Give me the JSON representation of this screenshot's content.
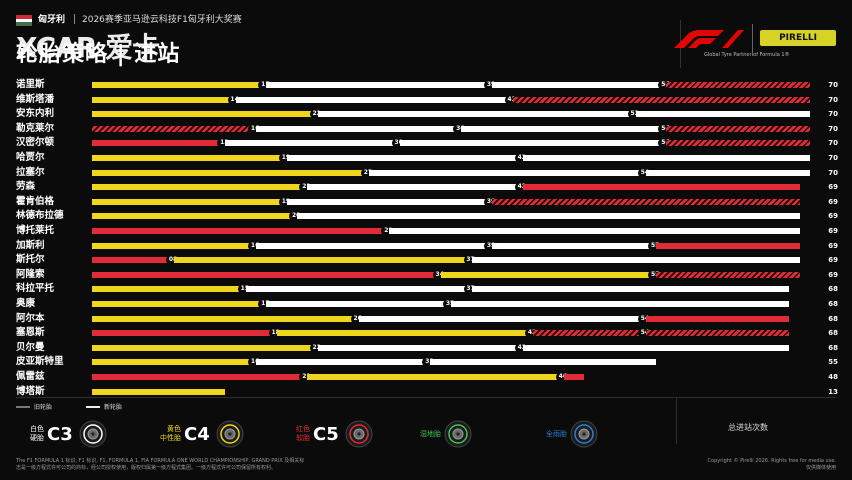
{
  "header": {
    "country": "匈牙利",
    "event": "2026赛季亚马逊云科技F1匈牙利大奖赛",
    "title": "轮胎策略 | 进站",
    "partner": "Global Tyre Partner of Formula 1®",
    "pirelli": "PIRELLI",
    "watermark": "XCAR 爱卡"
  },
  "colors": {
    "c3": "#ffffff",
    "c4": "#f0d51d",
    "c5": "#e12c38",
    "bg": "#0b0b0b"
  },
  "legend": {
    "used": "旧轮胎",
    "new": "新轮胎"
  },
  "tyres": [
    {
      "code": "C3",
      "cn": [
        "白色",
        "硬胎"
      ],
      "color": "#ffffff",
      "icon": "hard-tyre-icon"
    },
    {
      "code": "C4",
      "cn": [
        "黄色",
        "中性胎"
      ],
      "color": "#f0d51d",
      "icon": "medium-tyre-icon"
    },
    {
      "code": "C5",
      "cn": [
        "红色",
        "软胎"
      ],
      "color": "#e12c38",
      "icon": "soft-tyre-icon"
    },
    {
      "code": "",
      "cn": [
        "湿地胎"
      ],
      "color": "#3cc35a",
      "icon": "intermediate-tyre-icon"
    },
    {
      "code": "",
      "cn": [
        "全雨胎"
      ],
      "color": "#2a7fd4",
      "icon": "wet-tyre-icon"
    }
  ],
  "stops_label": "总进站次数",
  "footer": {
    "left1": "The F1 FORMULA 1 标识, F1 标识, F1, FORMULA 1, FIA FORMULA ONE WORLD CHAMPIONSHIP, GRAND PRIX 及相关标",
    "left2": "志是一级方程式许可公司的商标，经公司授权使用，版权归属第一级方程式集团。一级方程式许可公司保留所有权利。",
    "right1": "Copyright © Pirelli 2026. Rights free for media use.",
    "right2": "仅供媒体使用"
  },
  "chart_data": {
    "type": "bar",
    "orientation": "horizontal",
    "x_unit": "laps",
    "xlim": [
      0,
      70
    ],
    "drivers": [
      {
        "name": "诺里斯",
        "total": 70,
        "stints": [
          {
            "c": "c4",
            "s": 0,
            "e": 17,
            "used": false
          },
          {
            "c": "c3",
            "s": 17,
            "e": 39,
            "used": false
          },
          {
            "c": "c3",
            "s": 39,
            "e": 56,
            "used": false
          },
          {
            "c": "c5",
            "s": 56,
            "e": 70,
            "used": true
          }
        ]
      },
      {
        "name": "维斯塔潘",
        "total": 70,
        "stints": [
          {
            "c": "c4",
            "s": 0,
            "e": 14,
            "used": false
          },
          {
            "c": "c3",
            "s": 14,
            "e": 41,
            "used": false
          },
          {
            "c": "c5",
            "s": 41,
            "e": 70,
            "used": true
          }
        ]
      },
      {
        "name": "安东内利",
        "total": 70,
        "stints": [
          {
            "c": "c4",
            "s": 0,
            "e": 22,
            "used": false
          },
          {
            "c": "c3",
            "s": 22,
            "e": 53,
            "used": false
          },
          {
            "c": "c3",
            "s": 53,
            "e": 70,
            "used": false
          }
        ]
      },
      {
        "name": "勒克莱尔",
        "total": 70,
        "stints": [
          {
            "c": "c5",
            "s": 0,
            "e": 16,
            "used": true
          },
          {
            "c": "c3",
            "s": 16,
            "e": 36,
            "used": false
          },
          {
            "c": "c3",
            "s": 36,
            "e": 56,
            "used": false
          },
          {
            "c": "c5",
            "s": 56,
            "e": 70,
            "used": true
          }
        ]
      },
      {
        "name": "汉密尔顿",
        "total": 70,
        "stints": [
          {
            "c": "c5",
            "s": 0,
            "e": 13,
            "used": false
          },
          {
            "c": "c3",
            "s": 13,
            "e": 30,
            "used": false
          },
          {
            "c": "c3",
            "s": 30,
            "e": 56,
            "used": false
          },
          {
            "c": "c5",
            "s": 56,
            "e": 70,
            "used": true
          }
        ]
      },
      {
        "name": "哈贾尔",
        "total": 70,
        "stints": [
          {
            "c": "c4",
            "s": 0,
            "e": 19,
            "used": false
          },
          {
            "c": "c3",
            "s": 19,
            "e": 42,
            "used": false
          },
          {
            "c": "c3",
            "s": 42,
            "e": 70,
            "used": false
          }
        ]
      },
      {
        "name": "拉塞尔",
        "total": 70,
        "stints": [
          {
            "c": "c4",
            "s": 0,
            "e": 27,
            "used": false
          },
          {
            "c": "c3",
            "s": 27,
            "e": 54,
            "used": false
          },
          {
            "c": "c3",
            "s": 54,
            "e": 70,
            "used": false
          }
        ]
      },
      {
        "name": "劳森",
        "total": 69,
        "stints": [
          {
            "c": "c4",
            "s": 0,
            "e": 21,
            "used": false
          },
          {
            "c": "c3",
            "s": 21,
            "e": 42,
            "used": false
          },
          {
            "c": "c5",
            "s": 42,
            "e": 69,
            "used": false
          }
        ]
      },
      {
        "name": "霍肯伯格",
        "total": 69,
        "stints": [
          {
            "c": "c4",
            "s": 0,
            "e": 19,
            "used": false
          },
          {
            "c": "c3",
            "s": 19,
            "e": 39,
            "used": false
          },
          {
            "c": "c5",
            "s": 39,
            "e": 69,
            "used": true
          }
        ]
      },
      {
        "name": "林德布拉德",
        "total": 69,
        "stints": [
          {
            "c": "c4",
            "s": 0,
            "e": 20,
            "used": false
          },
          {
            "c": "c3",
            "s": 20,
            "e": 69,
            "used": false
          }
        ]
      },
      {
        "name": "博托莱托",
        "total": 69,
        "stints": [
          {
            "c": "c5",
            "s": 0,
            "e": 29,
            "used": false
          },
          {
            "c": "c3",
            "s": 29,
            "e": 69,
            "used": false
          }
        ]
      },
      {
        "name": "加斯利",
        "total": 69,
        "stints": [
          {
            "c": "c4",
            "s": 0,
            "e": 16,
            "used": false
          },
          {
            "c": "c3",
            "s": 16,
            "e": 39,
            "used": false
          },
          {
            "c": "c3",
            "s": 39,
            "e": 55,
            "used": false
          },
          {
            "c": "c5",
            "s": 55,
            "e": 69,
            "used": false
          }
        ]
      },
      {
        "name": "斯托尔",
        "total": 69,
        "stints": [
          {
            "c": "c5",
            "s": 0,
            "e": 8,
            "used": false
          },
          {
            "c": "c4",
            "s": 8,
            "e": 37,
            "used": false
          },
          {
            "c": "c3",
            "s": 37,
            "e": 69,
            "used": false
          }
        ]
      },
      {
        "name": "阿隆索",
        "total": 69,
        "stints": [
          {
            "c": "c5",
            "s": 0,
            "e": 34,
            "used": false
          },
          {
            "c": "c4",
            "s": 34,
            "e": 55,
            "used": false
          },
          {
            "c": "c5",
            "s": 55,
            "e": 69,
            "used": true
          }
        ]
      },
      {
        "name": "科拉平托",
        "total": 68,
        "stints": [
          {
            "c": "c4",
            "s": 0,
            "e": 15,
            "used": false
          },
          {
            "c": "c3",
            "s": 15,
            "e": 37,
            "used": false
          },
          {
            "c": "c3",
            "s": 37,
            "e": 68,
            "used": false
          }
        ]
      },
      {
        "name": "奥康",
        "total": 68,
        "stints": [
          {
            "c": "c4",
            "s": 0,
            "e": 17,
            "used": false
          },
          {
            "c": "c3",
            "s": 17,
            "e": 35,
            "used": false
          },
          {
            "c": "c3",
            "s": 35,
            "e": 68,
            "used": false
          }
        ]
      },
      {
        "name": "阿尔本",
        "total": 68,
        "stints": [
          {
            "c": "c4",
            "s": 0,
            "e": 26,
            "used": false
          },
          {
            "c": "c3",
            "s": 26,
            "e": 54,
            "used": false
          },
          {
            "c": "c5",
            "s": 54,
            "e": 68,
            "used": false
          }
        ]
      },
      {
        "name": "塞恩斯",
        "total": 68,
        "stints": [
          {
            "c": "c5",
            "s": 0,
            "e": 18,
            "used": false
          },
          {
            "c": "c4",
            "s": 18,
            "e": 43,
            "used": false
          },
          {
            "c": "c5",
            "s": 43,
            "e": 54,
            "used": true
          },
          {
            "c": "c5",
            "s": 54,
            "e": 68,
            "used": true
          }
        ]
      },
      {
        "name": "贝尔曼",
        "total": 68,
        "stints": [
          {
            "c": "c4",
            "s": 0,
            "e": 22,
            "used": false
          },
          {
            "c": "c3",
            "s": 22,
            "e": 42,
            "used": false
          },
          {
            "c": "c3",
            "s": 42,
            "e": 68,
            "used": false
          }
        ]
      },
      {
        "name": "皮亚斯特里",
        "total": 55,
        "stints": [
          {
            "c": "c4",
            "s": 0,
            "e": 16,
            "used": false
          },
          {
            "c": "c3",
            "s": 16,
            "e": 33,
            "used": false
          },
          {
            "c": "c3",
            "s": 33,
            "e": 55,
            "used": false
          }
        ]
      },
      {
        "name": "佩雷兹",
        "total": 48,
        "stints": [
          {
            "c": "c5",
            "s": 0,
            "e": 21,
            "used": false
          },
          {
            "c": "c4",
            "s": 21,
            "e": 46,
            "used": false
          },
          {
            "c": "c5",
            "s": 46,
            "e": 48,
            "used": false
          }
        ]
      },
      {
        "name": "博塔斯",
        "total": 13,
        "stints": [
          {
            "c": "c4",
            "s": 0,
            "e": 13,
            "used": false
          }
        ]
      }
    ]
  }
}
